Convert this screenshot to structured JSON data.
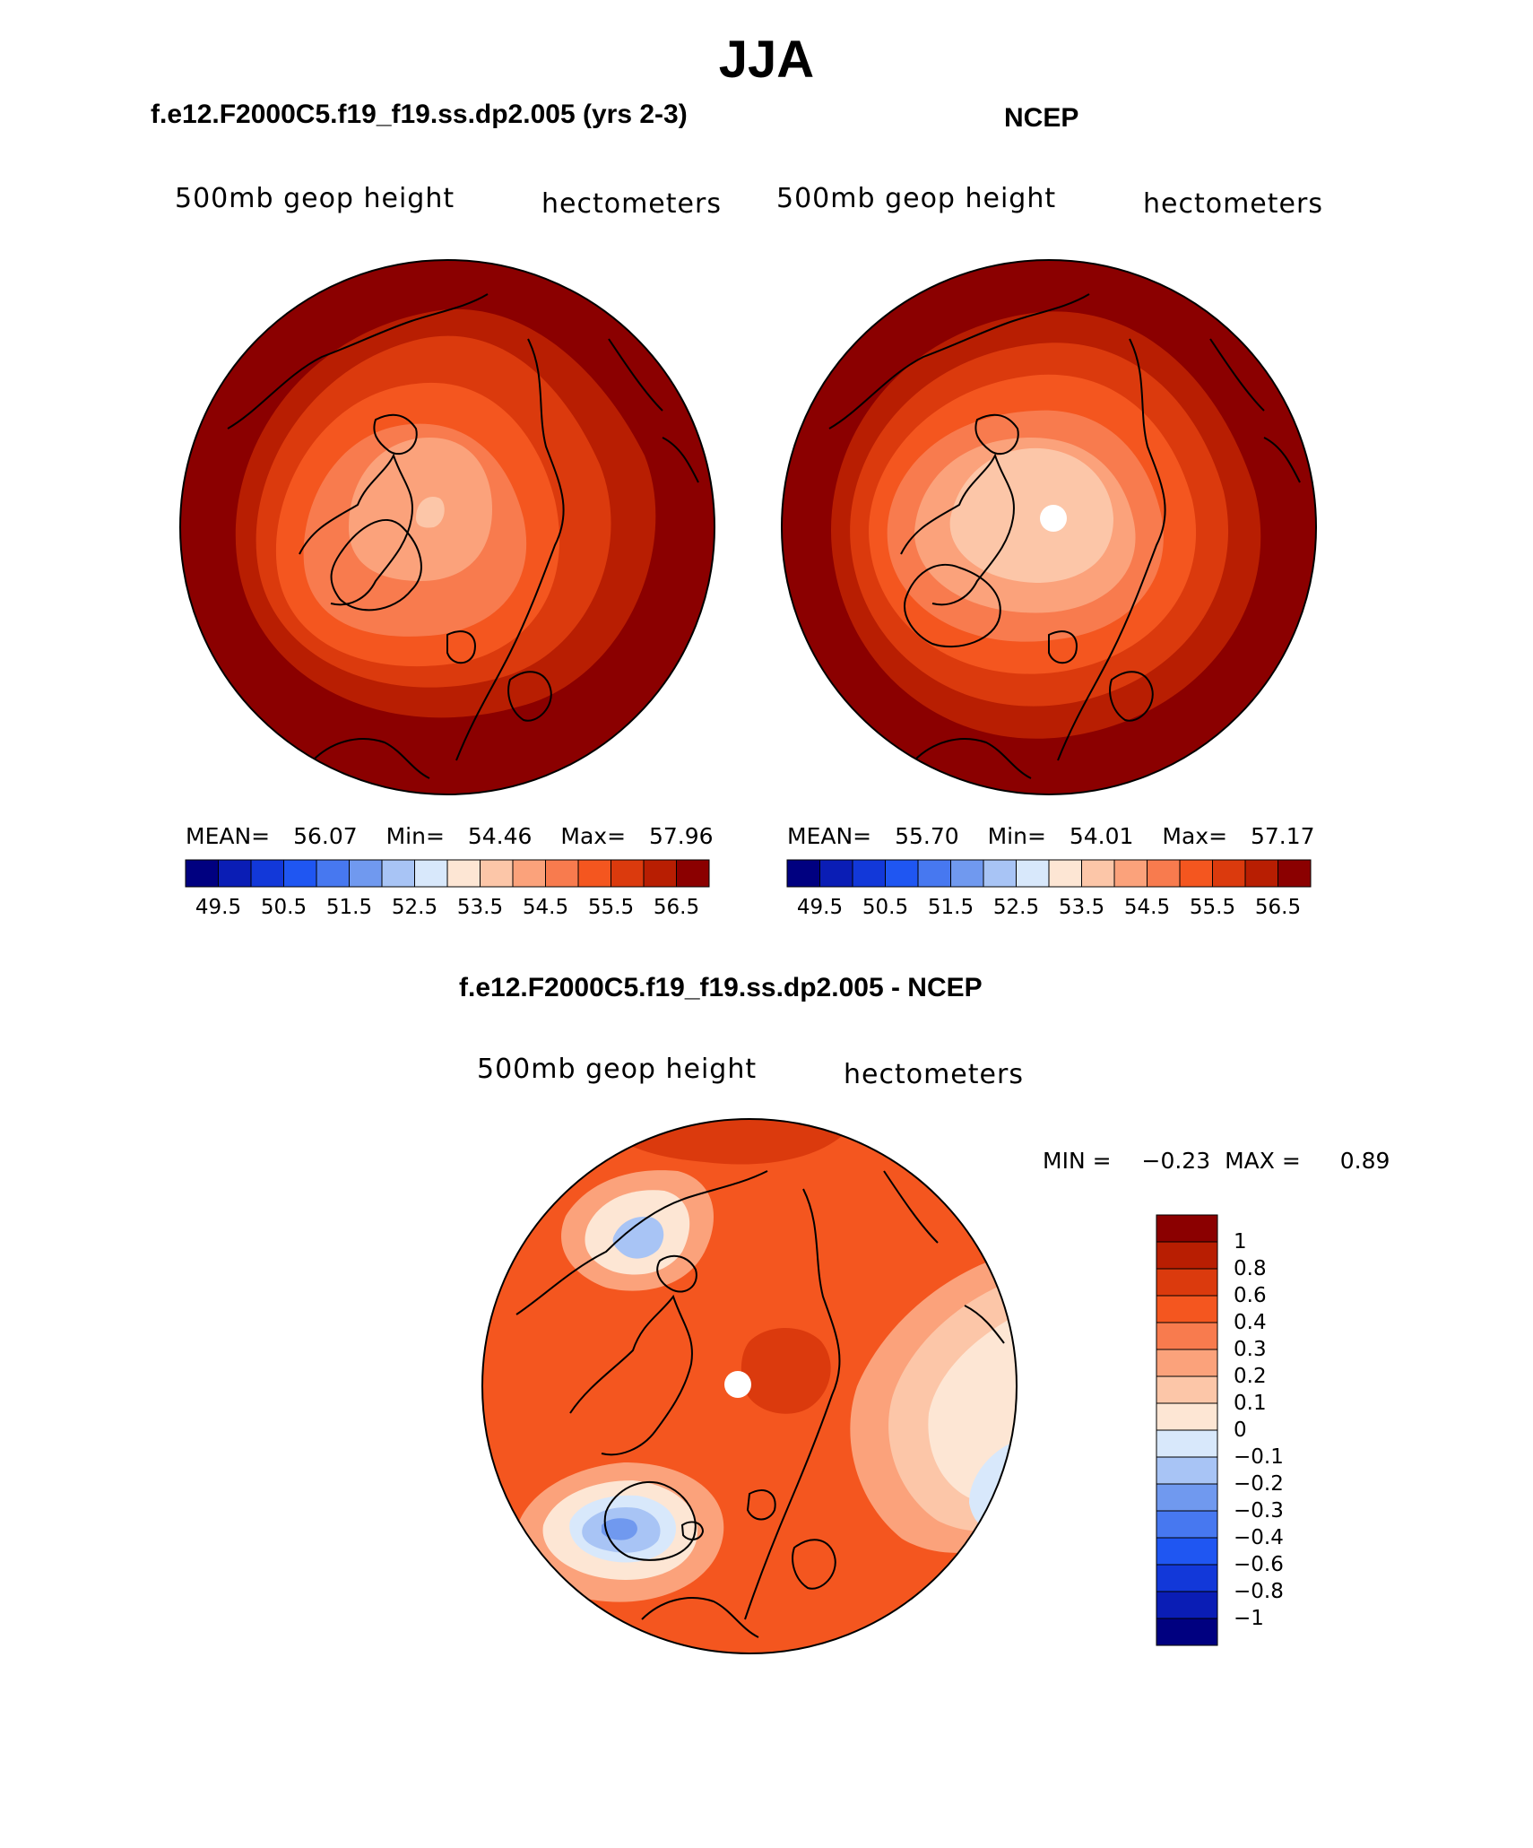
{
  "figure": {
    "season": "JJA"
  },
  "panels": [
    {
      "id": "model",
      "title": "f.e12.F2000C5.f19_f19.ss.dp2.005 (yrs 2-3)",
      "variable": "500mb geop height",
      "units": "hectometers",
      "stats": {
        "mean_label": "MEAN=",
        "mean_value": "56.07",
        "min_label": "Min=",
        "min_value": "54.46",
        "max_label": "Max=",
        "max_value": "57.96"
      },
      "colorbar": {
        "colors": [
          "#000080",
          "#0a1db5",
          "#1238d9",
          "#1f56f2",
          "#4778f0",
          "#7099ef",
          "#a8c4f5",
          "#d8e8fb",
          "#fde6d4",
          "#fcc6a8",
          "#fba27b",
          "#f87b4e",
          "#f4561f",
          "#db3a0d",
          "#b81e02",
          "#8b0000"
        ],
        "tick_labels": [
          "49.5",
          "50.5",
          "51.5",
          "52.5",
          "53.5",
          "54.5",
          "55.5",
          "56.5"
        ]
      }
    },
    {
      "id": "obs",
      "title": "NCEP",
      "variable": "500mb geop height",
      "units": "hectometers",
      "stats": {
        "mean_label": "MEAN=",
        "mean_value": "55.70",
        "min_label": "Min=",
        "min_value": "54.01",
        "max_label": "Max=",
        "max_value": "57.17"
      },
      "colorbar": {
        "colors": [
          "#000080",
          "#0a1db5",
          "#1238d9",
          "#1f56f2",
          "#4778f0",
          "#7099ef",
          "#a8c4f5",
          "#d8e8fb",
          "#fde6d4",
          "#fcc6a8",
          "#fba27b",
          "#f87b4e",
          "#f4561f",
          "#db3a0d",
          "#b81e02",
          "#8b0000"
        ],
        "tick_labels": [
          "49.5",
          "50.5",
          "51.5",
          "52.5",
          "53.5",
          "54.5",
          "55.5",
          "56.5"
        ]
      }
    },
    {
      "id": "diff",
      "title": "f.e12.F2000C5.f19_f19.ss.dp2.005 - NCEP",
      "variable": "500mb geop height",
      "units": "hectometers",
      "stats": {
        "min_label": "MIN =",
        "min_value": "−0.23",
        "max_label": "MAX =",
        "max_value": "0.89"
      },
      "colorbar": {
        "colors": [
          "#8b0000",
          "#b81e02",
          "#db3a0d",
          "#f4561f",
          "#f87b4e",
          "#fba27b",
          "#fcc6a8",
          "#fde6d4",
          "#d8e8fb",
          "#a8c4f5",
          "#7099ef",
          "#4778f0",
          "#1f56f2",
          "#1238d9",
          "#0a1db5",
          "#000080"
        ],
        "tick_labels": [
          "1",
          "0.8",
          "0.6",
          "0.4",
          "0.3",
          "0.2",
          "0.1",
          "0",
          "−0.1",
          "−0.2",
          "−0.3",
          "−0.4",
          "−0.6",
          "−0.8",
          "−1"
        ]
      }
    }
  ]
}
